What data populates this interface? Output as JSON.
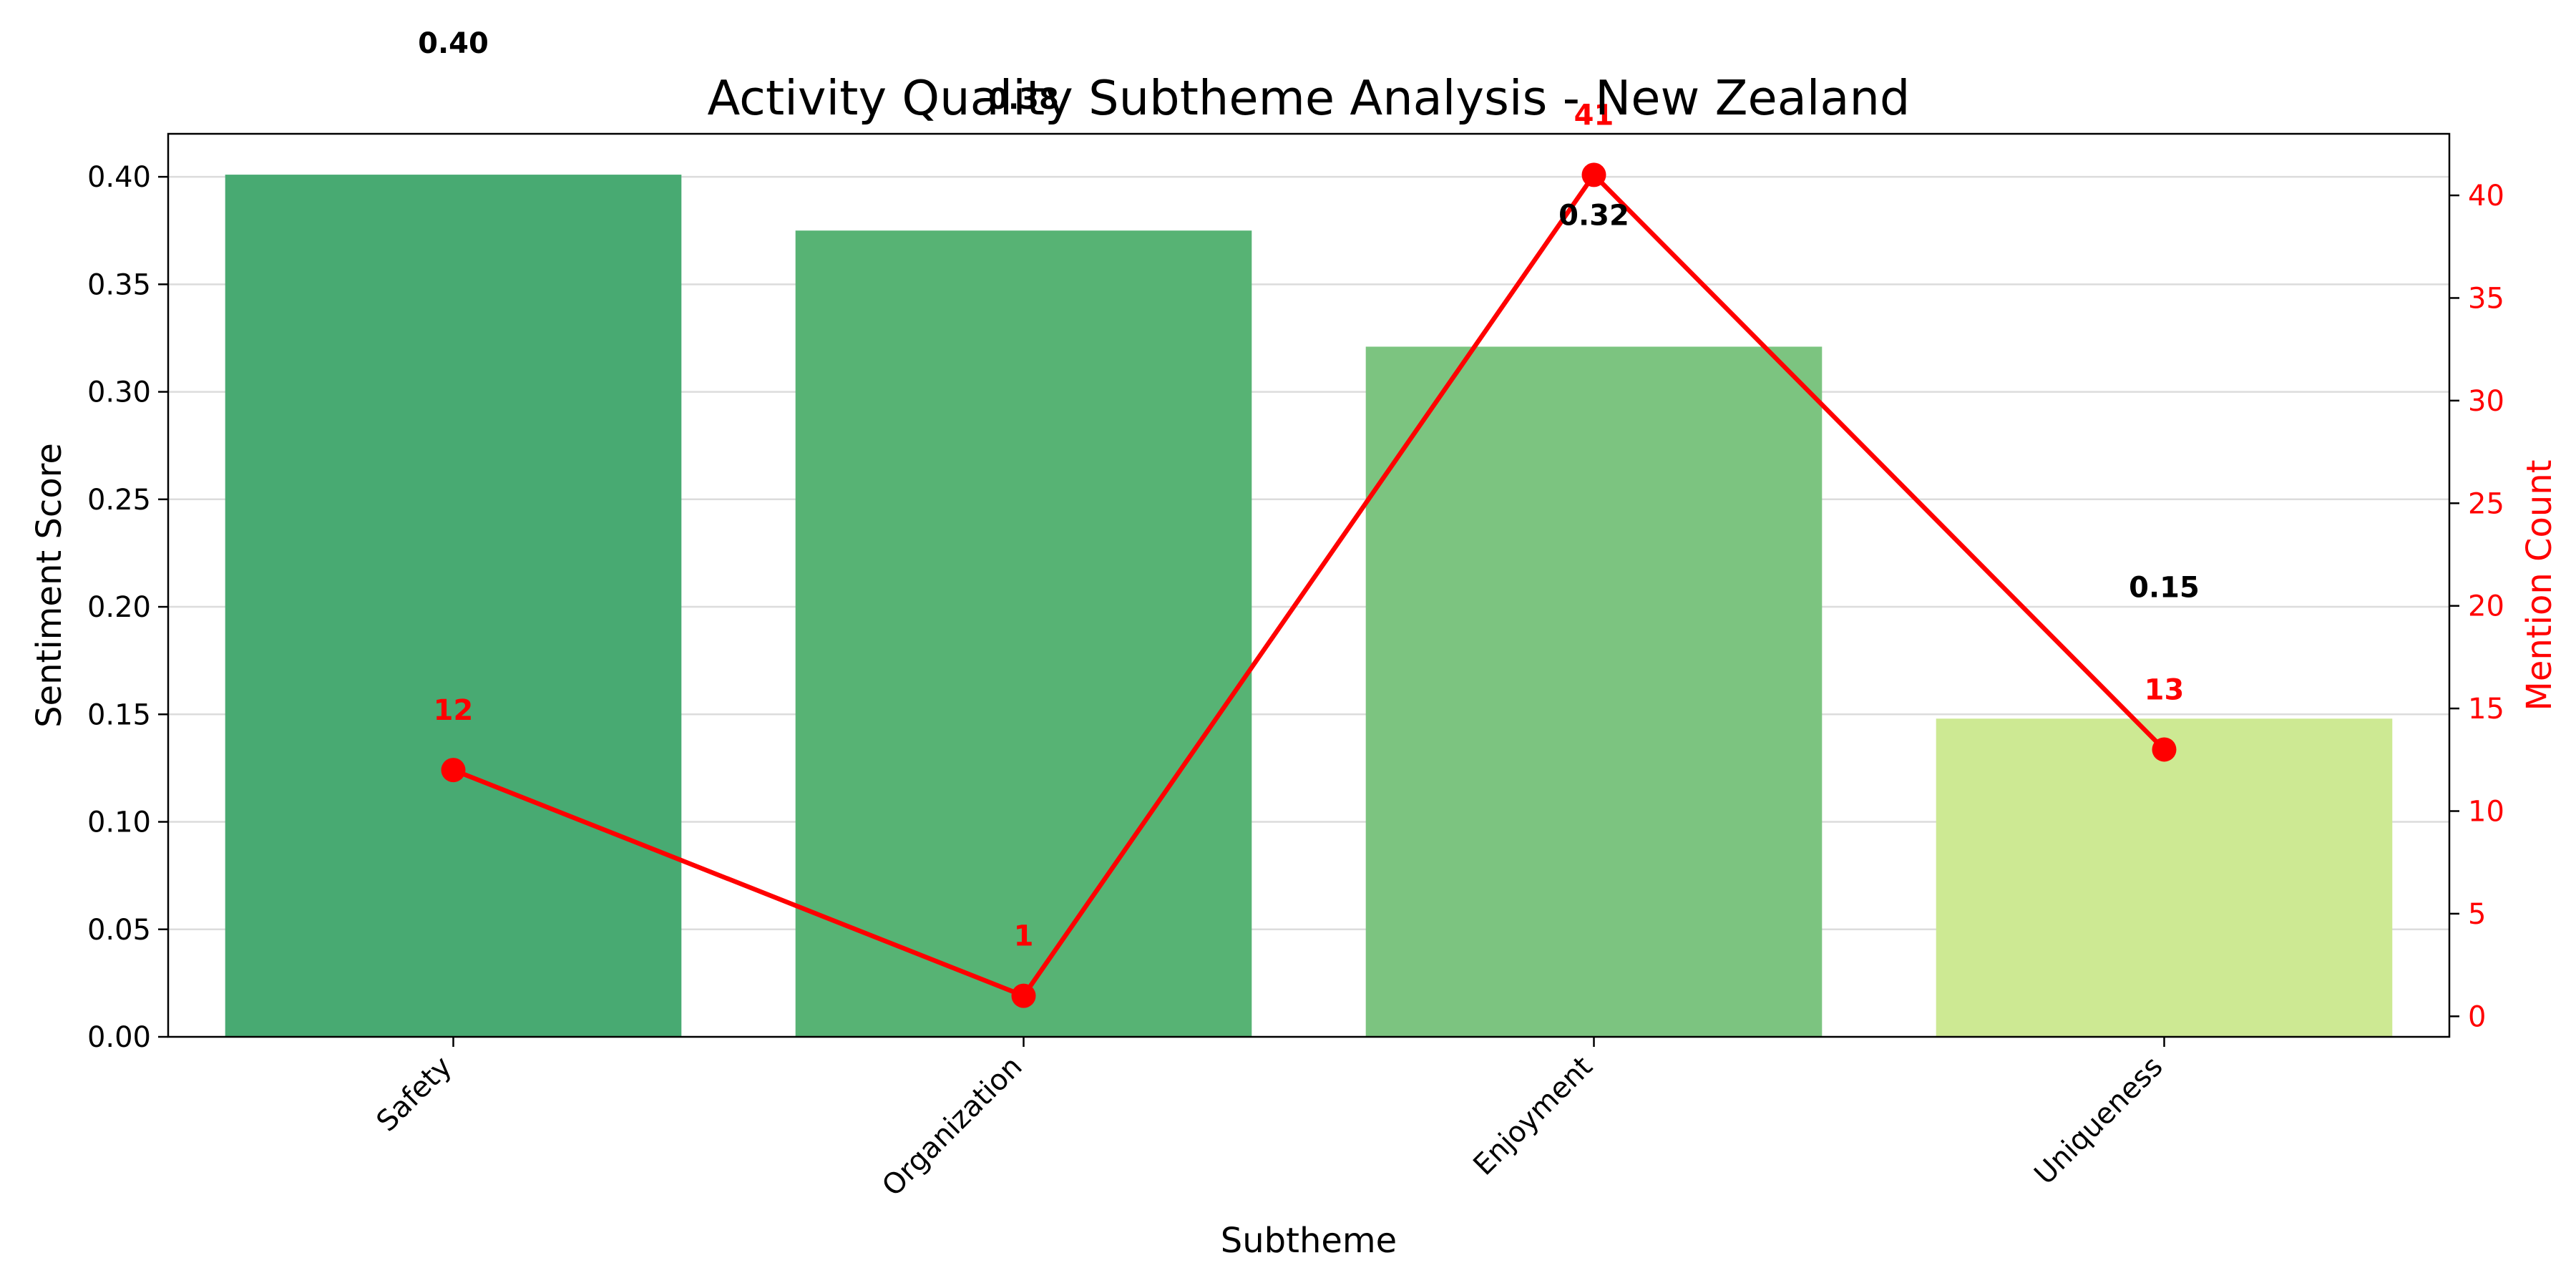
{
  "chart_data": {
    "type": "bar",
    "title": "Activity Quality Subtheme Analysis - New Zealand",
    "xlabel": "Subtheme",
    "ylabel": "Sentiment Score",
    "y2label": "Mention Count",
    "categories": [
      "Safety",
      "Organization",
      "Enjoyment",
      "Uniqueness"
    ],
    "series": [
      {
        "name": "Sentiment Score",
        "type": "bar",
        "axis": "left",
        "values": [
          0.401,
          0.375,
          0.321,
          0.148
        ],
        "labels": [
          "0.40",
          "0.38",
          "0.32",
          "0.15"
        ],
        "colors": [
          "#48aa72",
          "#57b374",
          "#7cc480",
          "#cde993"
        ]
      },
      {
        "name": "Mention Count",
        "type": "line",
        "axis": "right",
        "values": [
          12,
          1,
          41,
          13
        ],
        "labels": [
          "12",
          "1",
          "41",
          "13"
        ],
        "color": "#ff0000"
      }
    ],
    "ylim": [
      0,
      0.42
    ],
    "y2lim": [
      -1,
      43
    ],
    "yticks": [
      "0.00",
      "0.05",
      "0.10",
      "0.15",
      "0.20",
      "0.25",
      "0.30",
      "0.35",
      "0.40"
    ],
    "y2ticks": [
      "0",
      "5",
      "10",
      "15",
      "20",
      "25",
      "30",
      "35",
      "40"
    ],
    "grid": true,
    "legend": "none"
  }
}
